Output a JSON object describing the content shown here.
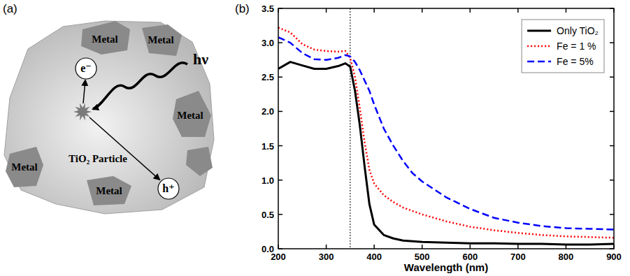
{
  "diagram": {
    "label": "(a)",
    "particle": "TiO₂ Particle",
    "metals": [
      "Metal",
      "Metal",
      "Metal",
      "Metal",
      "Metal"
    ],
    "electron": "e⁻",
    "hole": "h⁺",
    "photon": "hν"
  },
  "chart_data": {
    "type": "line",
    "panel_label": "(b)",
    "x_label": "Wavelength (nm)",
    "x": [
      200,
      225,
      250,
      275,
      300,
      325,
      340,
      350,
      360,
      370,
      380,
      390,
      400,
      420,
      440,
      460,
      480,
      500,
      550,
      600,
      650,
      700,
      750,
      800,
      850,
      900
    ],
    "xlim": [
      200,
      900
    ],
    "xticks": [
      200,
      300,
      400,
      500,
      600,
      700,
      800,
      900
    ],
    "ylim": [
      0,
      3.5
    ],
    "yticks": [
      {
        "value": 0,
        "label": "0.0"
      },
      0.5,
      {
        "value": 1,
        "label": "1.0"
      },
      1.5,
      {
        "value": 2,
        "label": "2.0"
      },
      2.5,
      {
        "value": 3,
        "label": "3.0"
      },
      3.5
    ],
    "reference_x": 350,
    "grid": false,
    "legend": "upper right",
    "series": [
      {
        "name": "Only TiO₂",
        "color": "#000000",
        "line_style": "solid",
        "values": [
          2.62,
          2.72,
          2.67,
          2.62,
          2.62,
          2.66,
          2.7,
          2.65,
          2.3,
          1.8,
          1.2,
          0.65,
          0.35,
          0.2,
          0.15,
          0.12,
          0.11,
          0.1,
          0.09,
          0.08,
          0.08,
          0.07,
          0.07,
          0.06,
          0.06,
          0.07
        ]
      },
      {
        "name": "Fe = 1 %",
        "color": "#ff0000",
        "line_style": "dotted",
        "values": [
          3.22,
          3.15,
          2.98,
          2.9,
          2.88,
          2.87,
          2.88,
          2.78,
          2.5,
          2.05,
          1.55,
          1.15,
          0.95,
          0.78,
          0.68,
          0.6,
          0.55,
          0.5,
          0.4,
          0.32,
          0.27,
          0.23,
          0.2,
          0.18,
          0.17,
          0.16
        ]
      },
      {
        "name": "Fe = 5%",
        "color": "#0000ff",
        "line_style": "dashed",
        "values": [
          3.08,
          3.0,
          2.85,
          2.76,
          2.75,
          2.78,
          2.82,
          2.8,
          2.72,
          2.6,
          2.45,
          2.3,
          2.1,
          1.75,
          1.5,
          1.28,
          1.1,
          0.98,
          0.75,
          0.58,
          0.45,
          0.38,
          0.33,
          0.3,
          0.29,
          0.28
        ]
      }
    ]
  }
}
